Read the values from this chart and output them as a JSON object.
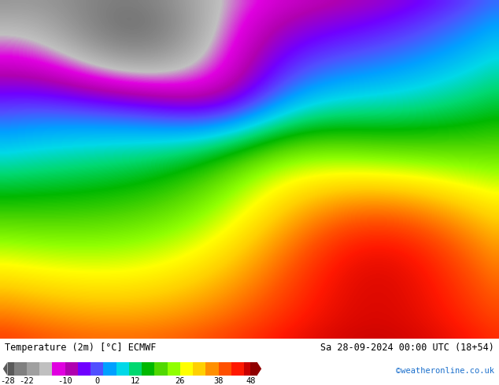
{
  "title_left": "Temperature (2m) [°C] ECMWF",
  "title_right": "Sa 28-09-2024 00:00 UTC (18+54)",
  "credit": "©weatheronline.co.uk",
  "colorbar_ticks": [
    -28,
    -22,
    -10,
    0,
    12,
    26,
    38,
    48
  ],
  "cb_colors": [
    "#5a5a5a",
    "#808080",
    "#a0a0a0",
    "#c0c0c0",
    "#e000e0",
    "#b000b0",
    "#7000ff",
    "#5050ff",
    "#00a0ff",
    "#00d8e8",
    "#00d870",
    "#00b800",
    "#50d800",
    "#90ff00",
    "#ffff00",
    "#ffd000",
    "#ff9000",
    "#ff5000",
    "#ff1800",
    "#c80000",
    "#900000"
  ],
  "cb_bounds": [
    -28,
    -26,
    -22,
    -18,
    -14,
    -10,
    -6,
    -2,
    2,
    6,
    10,
    14,
    18,
    22,
    26,
    30,
    34,
    38,
    42,
    46,
    48,
    50
  ],
  "temp_colors": [
    "#5a5a5a",
    "#808080",
    "#a0a0a0",
    "#c0c0c0",
    "#e000e0",
    "#b000b0",
    "#7000ff",
    "#5050ff",
    "#00a0ff",
    "#00d8e8",
    "#00d870",
    "#00b800",
    "#50d800",
    "#90ff00",
    "#ffff00",
    "#ffd000",
    "#ff9000",
    "#ff5000",
    "#ff1800",
    "#c80000",
    "#900000"
  ],
  "vmin": -28,
  "vmax": 48,
  "background_color": "#ffffff",
  "fig_width": 6.34,
  "fig_height": 4.9,
  "dpi": 100
}
